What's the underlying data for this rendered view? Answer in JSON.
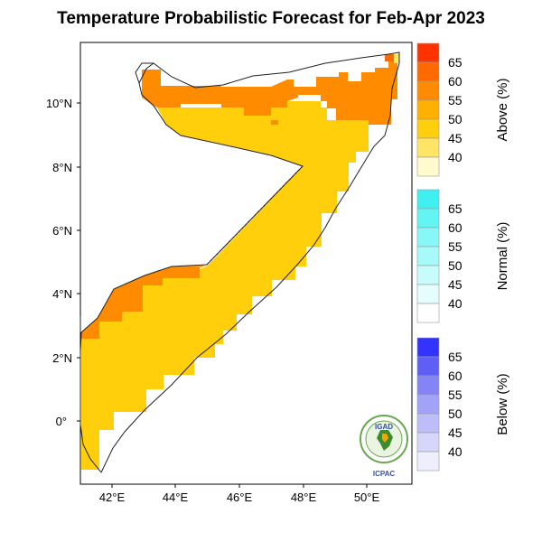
{
  "title": "Temperature Probabilistic Forecast for Feb-Apr 2023",
  "map": {
    "x_ticks": [
      "42°E",
      "44°E",
      "46°E",
      "48°E",
      "50°E"
    ],
    "y_ticks": [
      "10°N",
      "8°N",
      "6°N",
      "4°N",
      "2°N",
      "0°"
    ],
    "lon_range": [
      41,
      51.4
    ],
    "lat_range": [
      -1.65,
      11.9
    ],
    "regions": [
      {
        "category": "Above",
        "probability": "45-50",
        "color": "#ffcf0c"
      },
      {
        "category": "Above",
        "probability": "55-60",
        "color": "#ff8c00"
      }
    ]
  },
  "legends": [
    {
      "title": "Above (%)",
      "labels": [
        "65",
        "60",
        "55",
        "50",
        "45",
        "40"
      ],
      "colors": [
        "#ff3300",
        "#ff6a00",
        "#ff8c00",
        "#ffb000",
        "#ffcf0c",
        "#ffe566",
        "#fffbcc"
      ]
    },
    {
      "title": "Normal (%)",
      "labels": [
        "65",
        "60",
        "55",
        "50",
        "45",
        "40"
      ],
      "colors": [
        "#40f0f0",
        "#64f4f4",
        "#88f7f7",
        "#a8f9f9",
        "#c8fbfb",
        "#e6fdfd",
        "#ffffff"
      ]
    },
    {
      "title": "Below (%)",
      "labels": [
        "65",
        "60",
        "55",
        "50",
        "45",
        "40"
      ],
      "colors": [
        "#3333ff",
        "#5f5ff5",
        "#8484f6",
        "#a2a2f8",
        "#bdbdfa",
        "#d6d6fb",
        "#eeeefd"
      ]
    }
  ],
  "logo": {
    "top_text": "IGAD",
    "bottom_text": "ICPAC"
  }
}
